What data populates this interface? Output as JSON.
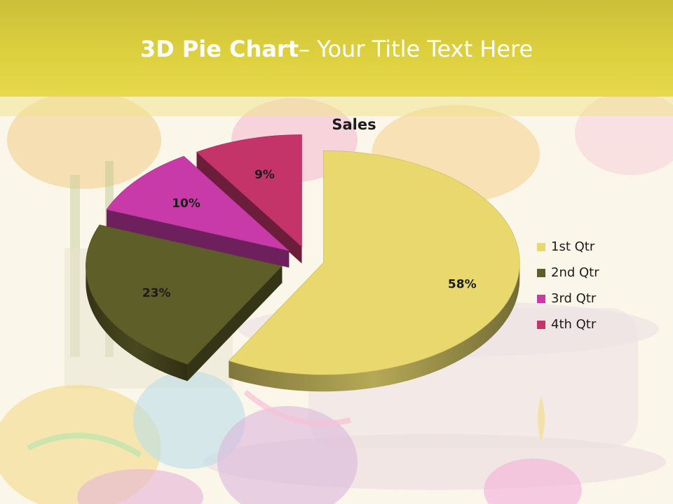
{
  "slide": {
    "title_bold": "3D Pie Chart",
    "title_rest": "– Your Title Text Here"
  },
  "chart_data": {
    "type": "pie",
    "title": "Sales",
    "categories": [
      "1st Qtr",
      "2nd Qtr",
      "3rd Qtr",
      "4th Qtr"
    ],
    "values": [
      58,
      23,
      10,
      9
    ],
    "labels": [
      "58%",
      "23%",
      "10%",
      "9%"
    ],
    "colors": [
      "#e8d86e",
      "#5e5e28",
      "#c73aa8",
      "#c43468"
    ],
    "legend": "right",
    "exploded": true
  }
}
